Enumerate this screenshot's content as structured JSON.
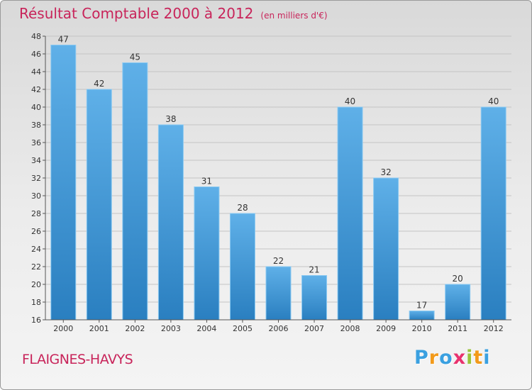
{
  "chart_data": {
    "type": "bar",
    "title": "Résultat Comptable 2000 à 2012",
    "unit_note": "(en milliers d'€)",
    "categories": [
      "2000",
      "2001",
      "2002",
      "2003",
      "2004",
      "2005",
      "2006",
      "2007",
      "2008",
      "2009",
      "2010",
      "2011",
      "2012"
    ],
    "values": [
      47,
      42,
      45,
      38,
      31,
      28,
      22,
      21,
      40,
      32,
      17,
      20,
      40
    ],
    "ylim": [
      16,
      48
    ],
    "yticks": [
      16,
      18,
      20,
      22,
      24,
      26,
      28,
      30,
      32,
      34,
      36,
      38,
      40,
      42,
      44,
      46,
      48
    ],
    "grid": true,
    "legend": "none",
    "xlabel": "",
    "ylabel": ""
  },
  "commune": "FLAIGNES-HAVYS",
  "logo": {
    "letters": [
      "P",
      "r",
      "o",
      "x",
      "i",
      "t",
      "i"
    ],
    "colors": [
      "#3aa0e0",
      "#f29a1a",
      "#3aa0e0",
      "#e8326e",
      "#9ac43a",
      "#f29a1a",
      "#3aa0e0"
    ]
  },
  "colors": {
    "bar_light": "#5fb0e8",
    "bar_dark": "#2a7fc0",
    "title": "#c8245a"
  }
}
